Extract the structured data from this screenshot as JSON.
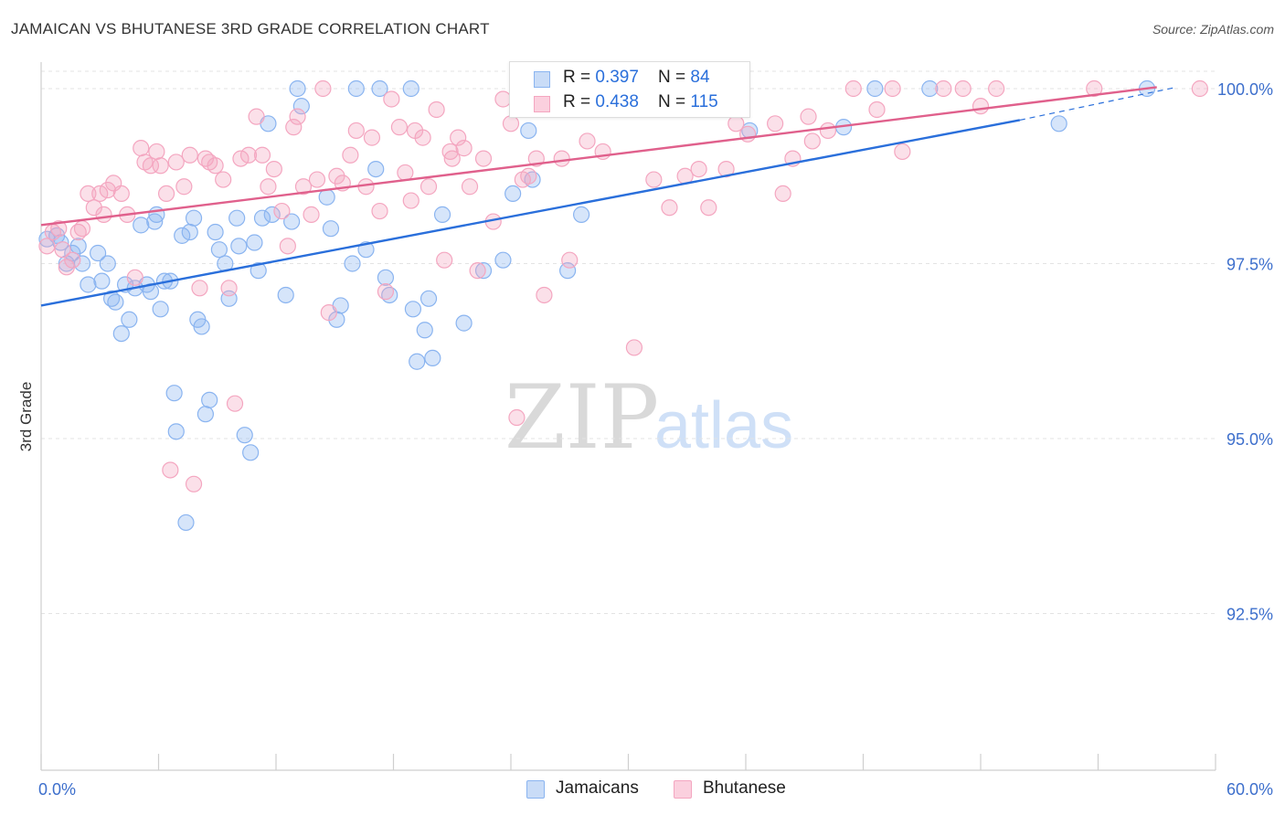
{
  "title": "JAMAICAN VS BHUTANESE 3RD GRADE CORRELATION CHART",
  "source": "Source: ZipAtlas.com",
  "watermark": {
    "zip": "ZIP",
    "atlas": "atlas"
  },
  "legend_stats": [
    {
      "r_label": "R = ",
      "r_value": "0.397",
      "n_label": "N = ",
      "n_value": "84",
      "color": "#8ab4f0"
    },
    {
      "r_label": "R = ",
      "r_value": "0.438",
      "n_label": "N = ",
      "n_value": "115",
      "color": "#f4a6c0"
    }
  ],
  "chart_data": {
    "type": "scatter",
    "title": "JAMAICAN VS BHUTANESE 3RD GRADE CORRELATION CHART",
    "xlabel": "",
    "ylabel": "3rd Grade",
    "xlim": [
      0,
      60
    ],
    "ylim": [
      90.0,
      100.5
    ],
    "x_tick_labels": [
      "0.0%",
      "60.0%"
    ],
    "y_ticks": [
      92.5,
      95.0,
      97.5,
      100.0
    ],
    "y_tick_labels": [
      "92.5%",
      "95.0%",
      "97.5%",
      "100.0%"
    ],
    "grid": true,
    "legend_position": "bottom",
    "series": [
      {
        "name": "Jamaicans",
        "color": "#8ab4f0",
        "line_color": "#2a6fdb",
        "trend": {
          "x": [
            0,
            50
          ],
          "y": [
            96.9,
            99.55
          ]
        },
        "trend_dashed": {
          "x": [
            50,
            58
          ],
          "y": [
            99.55,
            100.02
          ]
        },
        "points": [
          [
            0.3,
            97.85
          ],
          [
            0.8,
            97.9
          ],
          [
            1.0,
            97.8
          ],
          [
            1.3,
            97.5
          ],
          [
            1.6,
            97.65
          ],
          [
            1.9,
            97.75
          ],
          [
            2.1,
            97.5
          ],
          [
            2.4,
            97.2
          ],
          [
            2.9,
            97.65
          ],
          [
            3.1,
            97.25
          ],
          [
            3.4,
            97.5
          ],
          [
            3.6,
            97.0
          ],
          [
            3.8,
            96.95
          ],
          [
            4.1,
            96.5
          ],
          [
            4.3,
            97.2
          ],
          [
            4.5,
            96.7
          ],
          [
            4.8,
            97.15
          ],
          [
            5.1,
            98.05
          ],
          [
            5.4,
            97.2
          ],
          [
            5.6,
            97.1
          ],
          [
            5.8,
            98.1
          ],
          [
            5.9,
            98.2
          ],
          [
            6.1,
            96.85
          ],
          [
            6.3,
            97.25
          ],
          [
            6.6,
            97.25
          ],
          [
            6.8,
            95.65
          ],
          [
            6.9,
            95.1
          ],
          [
            7.2,
            97.9
          ],
          [
            7.4,
            93.8
          ],
          [
            7.6,
            97.95
          ],
          [
            7.8,
            98.15
          ],
          [
            8.0,
            96.7
          ],
          [
            8.2,
            96.6
          ],
          [
            8.4,
            95.35
          ],
          [
            8.6,
            95.55
          ],
          [
            8.9,
            97.95
          ],
          [
            9.1,
            97.7
          ],
          [
            9.4,
            97.5
          ],
          [
            9.6,
            97.0
          ],
          [
            10.0,
            98.15
          ],
          [
            10.1,
            97.75
          ],
          [
            10.4,
            95.05
          ],
          [
            10.7,
            94.8
          ],
          [
            10.9,
            97.8
          ],
          [
            11.1,
            97.4
          ],
          [
            11.3,
            98.15
          ],
          [
            11.6,
            99.5
          ],
          [
            11.8,
            98.2
          ],
          [
            12.5,
            97.05
          ],
          [
            12.8,
            98.1
          ],
          [
            13.1,
            100.0
          ],
          [
            13.3,
            99.75
          ],
          [
            14.6,
            98.45
          ],
          [
            14.8,
            98.0
          ],
          [
            15.1,
            96.7
          ],
          [
            15.3,
            96.9
          ],
          [
            15.9,
            97.5
          ],
          [
            16.1,
            100.0
          ],
          [
            16.6,
            97.7
          ],
          [
            17.1,
            98.85
          ],
          [
            17.3,
            100.0
          ],
          [
            17.6,
            97.3
          ],
          [
            17.8,
            97.05
          ],
          [
            18.9,
            100.0
          ],
          [
            19.0,
            96.85
          ],
          [
            19.2,
            96.1
          ],
          [
            19.6,
            96.55
          ],
          [
            19.8,
            97.0
          ],
          [
            20.0,
            96.15
          ],
          [
            20.5,
            98.2
          ],
          [
            21.6,
            96.65
          ],
          [
            22.6,
            97.4
          ],
          [
            23.6,
            97.55
          ],
          [
            24.1,
            98.5
          ],
          [
            24.9,
            99.4
          ],
          [
            25.1,
            98.7
          ],
          [
            26.9,
            97.4
          ],
          [
            27.6,
            98.2
          ],
          [
            36.2,
            99.4
          ],
          [
            41.0,
            99.45
          ],
          [
            42.6,
            100.0
          ],
          [
            45.4,
            100.0
          ],
          [
            52.0,
            99.5
          ],
          [
            56.5,
            100.0
          ]
        ]
      },
      {
        "name": "Bhutanese",
        "color": "#f4a6c0",
        "line_color": "#e0608c",
        "trend": {
          "x": [
            0,
            57
          ],
          "y": [
            98.05,
            100.02
          ]
        },
        "points": [
          [
            0.3,
            97.75
          ],
          [
            0.6,
            97.95
          ],
          [
            0.9,
            98.0
          ],
          [
            1.1,
            97.7
          ],
          [
            1.3,
            97.45
          ],
          [
            1.6,
            97.55
          ],
          [
            1.9,
            97.95
          ],
          [
            2.1,
            98.0
          ],
          [
            2.4,
            98.5
          ],
          [
            2.7,
            98.3
          ],
          [
            3.0,
            98.5
          ],
          [
            3.2,
            98.2
          ],
          [
            3.4,
            98.55
          ],
          [
            3.7,
            98.65
          ],
          [
            4.1,
            98.5
          ],
          [
            4.4,
            98.2
          ],
          [
            4.8,
            97.3
          ],
          [
            5.1,
            99.15
          ],
          [
            5.3,
            98.95
          ],
          [
            5.6,
            98.9
          ],
          [
            5.9,
            99.1
          ],
          [
            6.1,
            98.9
          ],
          [
            6.4,
            98.5
          ],
          [
            6.6,
            94.55
          ],
          [
            6.9,
            98.95
          ],
          [
            7.3,
            98.6
          ],
          [
            7.6,
            99.05
          ],
          [
            7.8,
            94.35
          ],
          [
            8.1,
            97.15
          ],
          [
            8.4,
            99.0
          ],
          [
            8.6,
            98.95
          ],
          [
            8.9,
            98.9
          ],
          [
            9.3,
            98.7
          ],
          [
            9.6,
            97.15
          ],
          [
            9.9,
            95.5
          ],
          [
            10.2,
            99.0
          ],
          [
            10.6,
            99.05
          ],
          [
            11.0,
            99.6
          ],
          [
            11.3,
            99.05
          ],
          [
            11.6,
            98.6
          ],
          [
            11.9,
            98.85
          ],
          [
            12.3,
            98.25
          ],
          [
            12.6,
            97.75
          ],
          [
            12.9,
            99.45
          ],
          [
            13.1,
            99.6
          ],
          [
            13.4,
            98.6
          ],
          [
            13.8,
            98.2
          ],
          [
            14.1,
            98.7
          ],
          [
            14.4,
            100.0
          ],
          [
            14.7,
            96.8
          ],
          [
            15.1,
            98.75
          ],
          [
            15.4,
            98.65
          ],
          [
            15.8,
            99.05
          ],
          [
            16.1,
            99.4
          ],
          [
            16.6,
            98.6
          ],
          [
            16.9,
            99.3
          ],
          [
            17.3,
            98.25
          ],
          [
            17.6,
            97.1
          ],
          [
            17.9,
            99.85
          ],
          [
            18.3,
            99.45
          ],
          [
            18.6,
            98.8
          ],
          [
            18.9,
            98.4
          ],
          [
            19.1,
            99.4
          ],
          [
            19.5,
            99.3
          ],
          [
            19.8,
            98.6
          ],
          [
            20.2,
            99.7
          ],
          [
            20.6,
            97.55
          ],
          [
            20.9,
            99.1
          ],
          [
            21.3,
            99.3
          ],
          [
            21.6,
            99.15
          ],
          [
            21.9,
            98.6
          ],
          [
            22.3,
            97.4
          ],
          [
            22.6,
            99.0
          ],
          [
            23.1,
            98.1
          ],
          [
            23.6,
            99.85
          ],
          [
            24.0,
            99.5
          ],
          [
            24.3,
            95.3
          ],
          [
            24.6,
            98.7
          ],
          [
            24.9,
            98.75
          ],
          [
            25.3,
            99.0
          ],
          [
            25.7,
            97.05
          ],
          [
            26.6,
            99.0
          ],
          [
            27.0,
            97.55
          ],
          [
            27.9,
            99.25
          ],
          [
            28.7,
            99.1
          ],
          [
            30.3,
            96.3
          ],
          [
            31.3,
            98.7
          ],
          [
            32.1,
            98.3
          ],
          [
            32.9,
            98.75
          ],
          [
            33.6,
            98.85
          ],
          [
            34.1,
            98.3
          ],
          [
            35.0,
            98.85
          ],
          [
            35.5,
            99.5
          ],
          [
            37.5,
            99.5
          ],
          [
            37.9,
            98.5
          ],
          [
            38.4,
            99.0
          ],
          [
            39.2,
            99.6
          ],
          [
            39.4,
            99.25
          ],
          [
            40.2,
            99.4
          ],
          [
            41.5,
            100.0
          ],
          [
            42.7,
            99.7
          ],
          [
            44.0,
            99.1
          ],
          [
            46.1,
            100.0
          ],
          [
            47.1,
            100.0
          ],
          [
            48.0,
            99.75
          ],
          [
            48.8,
            100.0
          ],
          [
            53.8,
            100.0
          ],
          [
            59.2,
            100.0
          ],
          [
            26.3,
            99.9
          ],
          [
            29.0,
            99.95
          ],
          [
            31.9,
            100.0
          ],
          [
            34.4,
            100.0
          ],
          [
            36.1,
            99.35
          ],
          [
            43.5,
            100.0
          ],
          [
            21.0,
            99.0
          ]
        ]
      }
    ]
  }
}
